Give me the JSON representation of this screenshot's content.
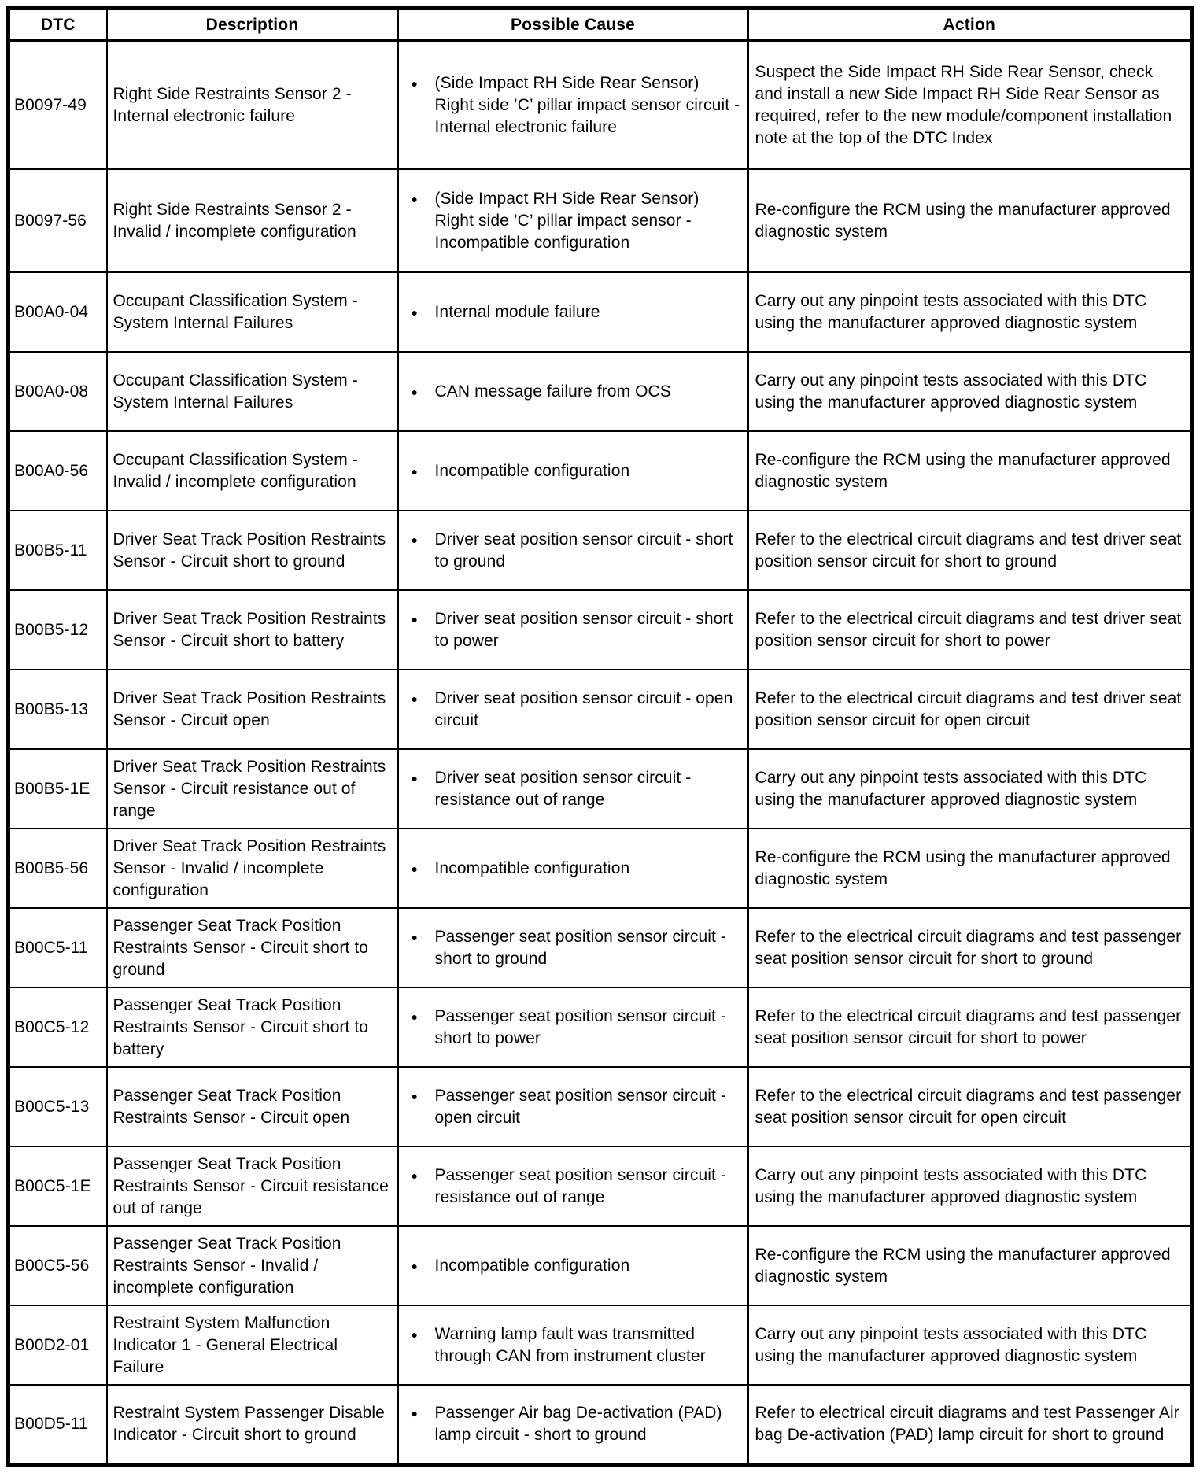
{
  "colors": {
    "background": "#ffffff",
    "text": "#000000",
    "border": "#000000"
  },
  "icons": {
    "bullet_glyph": "●"
  },
  "table": {
    "headers": [
      "DTC",
      "Description",
      "Possible Cause",
      "Action"
    ],
    "rows": [
      {
        "dtc": "B0097-49",
        "description": "Right Side Restraints Sensor 2 - Internal electronic failure",
        "causes": [
          "(Side Impact RH Side Rear Sensor) Right side ’C’ pillar impact sensor circuit - Internal electronic failure"
        ],
        "action": "Suspect the Side Impact RH Side Rear Sensor, check and install a new Side Impact RH Side Rear Sensor as required, refer to the new module/component installation note at the top of the DTC Index"
      },
      {
        "dtc": "B0097-56",
        "description": "Right Side Restraints Sensor 2 - Invalid / incomplete configuration",
        "causes": [
          "(Side Impact RH Side Rear Sensor) Right side ’C’ pillar impact sensor - Incompatible configuration"
        ],
        "action": "Re-configure the RCM using the manufacturer approved diagnostic system"
      },
      {
        "dtc": "B00A0-04",
        "description": "Occupant Classification System - System Internal Failures",
        "causes": [
          "Internal module failure"
        ],
        "action": "Carry out any pinpoint tests associated with this DTC using the manufacturer approved diagnostic system"
      },
      {
        "dtc": "B00A0-08",
        "description": "Occupant Classification System - System Internal Failures",
        "causes": [
          "CAN message failure from OCS"
        ],
        "action": "Carry out any pinpoint tests associated with this DTC using the manufacturer approved diagnostic system"
      },
      {
        "dtc": "B00A0-56",
        "description": "Occupant Classification System - Invalid / incomplete configuration",
        "causes": [
          "Incompatible configuration"
        ],
        "action": "Re-configure the RCM using the manufacturer approved diagnostic system"
      },
      {
        "dtc": "B00B5-11",
        "description": "Driver Seat Track Position Restraints Sensor - Circuit short to ground",
        "causes": [
          "Driver seat position sensor circuit - short to ground"
        ],
        "action": "Refer to the electrical circuit diagrams and test driver seat position sensor circuit for short to ground"
      },
      {
        "dtc": "B00B5-12",
        "description": "Driver Seat Track Position Restraints Sensor - Circuit short to battery",
        "causes": [
          "Driver seat position sensor circuit - short to power"
        ],
        "action": "Refer to the electrical circuit diagrams and test driver seat position sensor circuit for short to power"
      },
      {
        "dtc": "B00B5-13",
        "description": "Driver Seat Track Position Restraints Sensor - Circuit open",
        "causes": [
          "Driver seat position sensor circuit - open circuit"
        ],
        "action": "Refer to the electrical circuit diagrams and test driver seat position sensor circuit for open circuit"
      },
      {
        "dtc": "B00B5-1E",
        "description": "Driver Seat Track Position Restraints Sensor - Circuit resistance out of range",
        "causes": [
          "Driver seat position sensor circuit - resistance out of range"
        ],
        "action": "Carry out any pinpoint tests associated with this DTC using the manufacturer approved diagnostic system"
      },
      {
        "dtc": "B00B5-56",
        "description": "Driver Seat Track Position Restraints Sensor - Invalid / incomplete configuration",
        "causes": [
          "Incompatible configuration"
        ],
        "action": "Re-configure the RCM using the manufacturer approved diagnostic system"
      },
      {
        "dtc": "B00C5-11",
        "description": "Passenger Seat Track Position Restraints Sensor - Circuit short to ground",
        "causes": [
          "Passenger seat position sensor circuit - short to ground"
        ],
        "action": "Refer to the electrical circuit diagrams and test passenger seat position sensor circuit for short to ground"
      },
      {
        "dtc": "B00C5-12",
        "description": "Passenger Seat Track Position Restraints Sensor - Circuit short to battery",
        "causes": [
          "Passenger seat position sensor circuit - short to power"
        ],
        "action": "Refer to the electrical circuit diagrams and test passenger seat position sensor circuit for short to power"
      },
      {
        "dtc": "B00C5-13",
        "description": "Passenger Seat Track Position Restraints Sensor - Circuit open",
        "causes": [
          "Passenger seat position sensor circuit - open circuit"
        ],
        "action": "Refer to the electrical circuit diagrams and test passenger seat position sensor circuit for open circuit"
      },
      {
        "dtc": "B00C5-1E",
        "description": "Passenger Seat Track Position Restraints Sensor - Circuit resistance out of range",
        "causes": [
          "Passenger seat position sensor circuit - resistance out of range"
        ],
        "action": "Carry out any pinpoint tests associated with this DTC using the manufacturer approved diagnostic system"
      },
      {
        "dtc": "B00C5-56",
        "description": "Passenger Seat Track Position Restraints Sensor - Invalid / incomplete configuration",
        "causes": [
          "Incompatible configuration"
        ],
        "action": "Re-configure the RCM using the manufacturer approved diagnostic system"
      },
      {
        "dtc": "B00D2-01",
        "description": "Restraint System Malfunction Indicator 1 - General Electrical Failure",
        "causes": [
          "Warning lamp fault was transmitted through CAN from instrument cluster"
        ],
        "action": "Carry out any pinpoint tests associated with this DTC using the manufacturer approved diagnostic system"
      },
      {
        "dtc": "B00D5-11",
        "description": "Restraint System Passenger Disable Indicator - Circuit short to ground",
        "causes": [
          "Passenger Air bag De-activation (PAD) lamp circuit - short to ground"
        ],
        "action": "Refer to electrical circuit diagrams and test Passenger Air bag De-activation (PAD) lamp circuit for short to ground"
      }
    ]
  }
}
